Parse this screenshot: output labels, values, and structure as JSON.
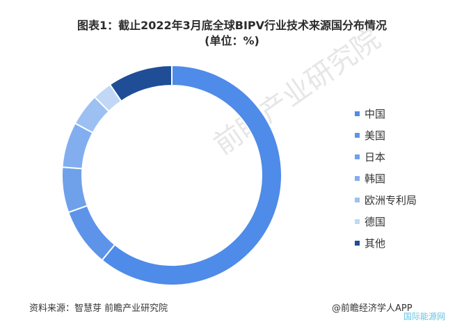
{
  "title": {
    "line1": "图表1：截止2022年3月底全球BIPV行业技术来源国分布情况",
    "line2": "(单位：%)"
  },
  "chart_data": {
    "type": "pie",
    "subtype": "donut",
    "categories": [
      "中国",
      "美国",
      "日本",
      "韩国",
      "欧洲专利局",
      "德国",
      "其他"
    ],
    "values": [
      64,
      9,
      7,
      7,
      5,
      3,
      10
    ],
    "colors": [
      "#4f8be8",
      "#5d94e9",
      "#6fa1ea",
      "#82aef0",
      "#9dc0f2",
      "#c0d8f6",
      "#1f4e97"
    ],
    "start_angle_deg": 0,
    "direction": "clockwise",
    "legend_position": "right"
  },
  "footer": {
    "source": "资料来源：智慧芽 前瞻产业研究院",
    "credit": "@前瞻经济学人APP"
  },
  "watermark": {
    "center": "前瞻产业研究院",
    "corner": "国际能源网"
  }
}
